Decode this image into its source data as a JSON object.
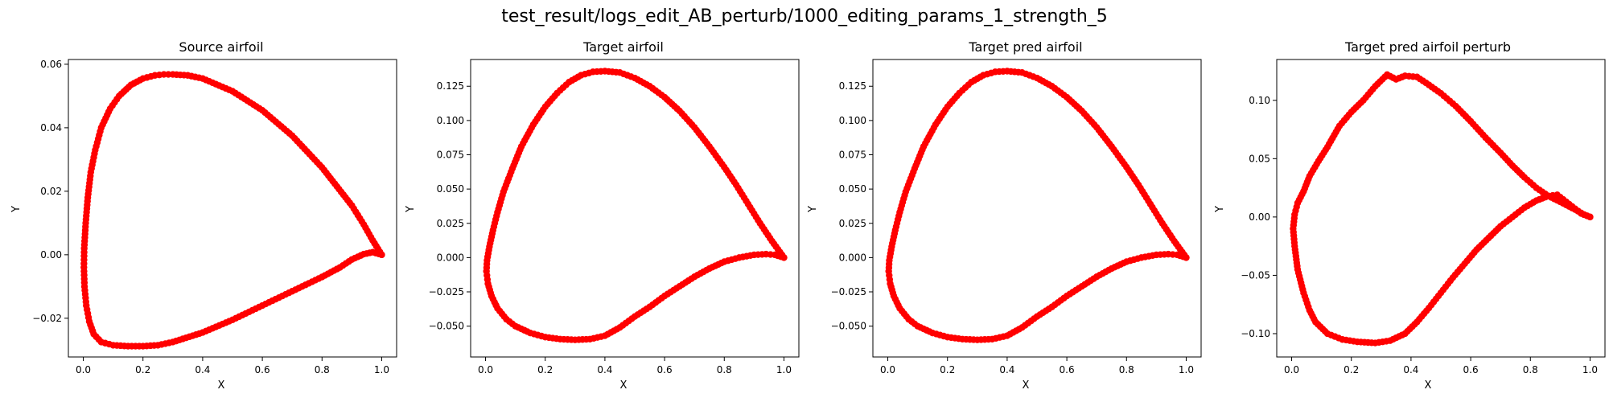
{
  "suptitle": "test_result/logs_edit_AB_perturb/1000_editing_params_1_strength_5",
  "chart_data": [
    {
      "type": "scatter",
      "title": "Source airfoil",
      "xlabel": "X",
      "ylabel": "Y",
      "xlim": [
        -0.05,
        1.05
      ],
      "ylim": [
        -0.0322,
        0.0615
      ],
      "xticks": [
        "0.0",
        "0.2",
        "0.4",
        "0.6",
        "0.8",
        "1.0"
      ],
      "xtick_values": [
        0,
        0.2,
        0.4,
        0.6,
        0.8,
        1.0
      ],
      "yticks": [
        "−0.02",
        "0.00",
        "0.02",
        "0.04",
        "0.06"
      ],
      "ytick_values": [
        -0.02,
        0,
        0.02,
        0.04,
        0.06
      ],
      "marker_color": "#ff0000",
      "upper": [
        [
          1.0,
          0.0
        ],
        [
          0.97,
          0.0045
        ],
        [
          0.94,
          0.0095
        ],
        [
          0.9,
          0.0155
        ],
        [
          0.85,
          0.0215
        ],
        [
          0.8,
          0.0275
        ],
        [
          0.75,
          0.0325
        ],
        [
          0.7,
          0.0375
        ],
        [
          0.6,
          0.0455
        ],
        [
          0.5,
          0.0515
        ],
        [
          0.4,
          0.0555
        ],
        [
          0.35,
          0.0565
        ],
        [
          0.3,
          0.0568
        ],
        [
          0.27,
          0.0568
        ],
        [
          0.24,
          0.0565
        ],
        [
          0.2,
          0.0555
        ],
        [
          0.16,
          0.0535
        ],
        [
          0.12,
          0.05
        ],
        [
          0.09,
          0.046
        ],
        [
          0.06,
          0.04
        ],
        [
          0.04,
          0.033
        ],
        [
          0.025,
          0.026
        ],
        [
          0.015,
          0.018
        ],
        [
          0.008,
          0.01
        ],
        [
          0.003,
          0.002
        ],
        [
          0.002,
          -0.004
        ],
        [
          0.004,
          -0.01
        ],
        [
          0.01,
          -0.016
        ],
        [
          0.02,
          -0.021
        ],
        [
          0.035,
          -0.025
        ],
        [
          0.06,
          -0.0275
        ],
        [
          0.1,
          -0.0285
        ],
        [
          0.15,
          -0.0288
        ],
        [
          0.2,
          -0.0288
        ],
        [
          0.25,
          -0.0285
        ],
        [
          0.3,
          -0.0275
        ],
        [
          0.4,
          -0.0245
        ],
        [
          0.5,
          -0.0205
        ],
        [
          0.6,
          -0.016
        ],
        [
          0.7,
          -0.0115
        ],
        [
          0.8,
          -0.007
        ],
        [
          0.86,
          -0.004
        ],
        [
          0.9,
          -0.0015
        ],
        [
          0.94,
          0.0002
        ],
        [
          0.97,
          0.0008
        ],
        [
          1.0,
          0.0
        ]
      ]
    },
    {
      "type": "scatter",
      "title": "Target airfoil",
      "xlabel": "X",
      "ylabel": "Y",
      "xlim": [
        -0.05,
        1.05
      ],
      "ylim": [
        -0.0725,
        0.1445
      ],
      "xticks": [
        "0.0",
        "0.2",
        "0.4",
        "0.6",
        "0.8",
        "1.0"
      ],
      "xtick_values": [
        0,
        0.2,
        0.4,
        0.6,
        0.8,
        1.0
      ],
      "yticks": [
        "−0.050",
        "−0.025",
        "0.000",
        "0.025",
        "0.050",
        "0.075",
        "0.100",
        "0.125"
      ],
      "ytick_values": [
        -0.05,
        -0.025,
        0,
        0.025,
        0.05,
        0.075,
        0.1,
        0.125
      ],
      "marker_color": "#ff0000",
      "upper": [
        [
          1.0,
          0.0
        ],
        [
          0.96,
          0.012
        ],
        [
          0.92,
          0.025
        ],
        [
          0.88,
          0.039
        ],
        [
          0.84,
          0.053
        ],
        [
          0.8,
          0.066
        ],
        [
          0.75,
          0.081
        ],
        [
          0.7,
          0.095
        ],
        [
          0.65,
          0.107
        ],
        [
          0.6,
          0.117
        ],
        [
          0.55,
          0.125
        ],
        [
          0.5,
          0.131
        ],
        [
          0.45,
          0.135
        ],
        [
          0.4,
          0.136
        ],
        [
          0.36,
          0.1355
        ],
        [
          0.32,
          0.133
        ],
        [
          0.28,
          0.128
        ],
        [
          0.24,
          0.12
        ],
        [
          0.2,
          0.11
        ],
        [
          0.16,
          0.097
        ],
        [
          0.12,
          0.081
        ],
        [
          0.09,
          0.065
        ],
        [
          0.06,
          0.048
        ],
        [
          0.04,
          0.033
        ],
        [
          0.025,
          0.02
        ],
        [
          0.013,
          0.008
        ],
        [
          0.005,
          -0.002
        ],
        [
          0.003,
          -0.01
        ],
        [
          0.008,
          -0.019
        ],
        [
          0.02,
          -0.028
        ],
        [
          0.04,
          -0.037
        ],
        [
          0.07,
          -0.045
        ],
        [
          0.1,
          -0.05
        ],
        [
          0.15,
          -0.055
        ],
        [
          0.2,
          -0.058
        ],
        [
          0.25,
          -0.0595
        ],
        [
          0.3,
          -0.06
        ],
        [
          0.35,
          -0.0595
        ],
        [
          0.4,
          -0.057
        ],
        [
          0.45,
          -0.051
        ],
        [
          0.5,
          -0.043
        ],
        [
          0.55,
          -0.036
        ],
        [
          0.6,
          -0.028
        ],
        [
          0.65,
          -0.021
        ],
        [
          0.7,
          -0.014
        ],
        [
          0.75,
          -0.008
        ],
        [
          0.8,
          -0.003
        ],
        [
          0.85,
          0.0
        ],
        [
          0.9,
          0.002
        ],
        [
          0.94,
          0.0025
        ],
        [
          0.97,
          0.002
        ],
        [
          1.0,
          0.0
        ]
      ]
    },
    {
      "type": "scatter",
      "title": "Target pred airfoil",
      "xlabel": "X",
      "ylabel": "Y",
      "xlim": [
        -0.05,
        1.05
      ],
      "ylim": [
        -0.0725,
        0.1445
      ],
      "xticks": [
        "0.0",
        "0.2",
        "0.4",
        "0.6",
        "0.8",
        "1.0"
      ],
      "xtick_values": [
        0,
        0.2,
        0.4,
        0.6,
        0.8,
        1.0
      ],
      "yticks": [
        "−0.050",
        "−0.025",
        "0.000",
        "0.025",
        "0.050",
        "0.075",
        "0.100",
        "0.125"
      ],
      "ytick_values": [
        -0.05,
        -0.025,
        0,
        0.025,
        0.05,
        0.075,
        0.1,
        0.125
      ],
      "marker_color": "#ff0000",
      "upper": [
        [
          1.0,
          0.0
        ],
        [
          0.96,
          0.012
        ],
        [
          0.92,
          0.025
        ],
        [
          0.88,
          0.039
        ],
        [
          0.84,
          0.053
        ],
        [
          0.8,
          0.066
        ],
        [
          0.75,
          0.081
        ],
        [
          0.7,
          0.095
        ],
        [
          0.65,
          0.107
        ],
        [
          0.6,
          0.117
        ],
        [
          0.55,
          0.125
        ],
        [
          0.5,
          0.131
        ],
        [
          0.45,
          0.135
        ],
        [
          0.4,
          0.136
        ],
        [
          0.36,
          0.1355
        ],
        [
          0.32,
          0.133
        ],
        [
          0.28,
          0.128
        ],
        [
          0.24,
          0.12
        ],
        [
          0.2,
          0.11
        ],
        [
          0.16,
          0.097
        ],
        [
          0.12,
          0.081
        ],
        [
          0.09,
          0.065
        ],
        [
          0.06,
          0.048
        ],
        [
          0.04,
          0.033
        ],
        [
          0.025,
          0.02
        ],
        [
          0.013,
          0.008
        ],
        [
          0.005,
          -0.002
        ],
        [
          0.003,
          -0.01
        ],
        [
          0.008,
          -0.019
        ],
        [
          0.02,
          -0.028
        ],
        [
          0.04,
          -0.037
        ],
        [
          0.07,
          -0.045
        ],
        [
          0.1,
          -0.05
        ],
        [
          0.15,
          -0.055
        ],
        [
          0.2,
          -0.058
        ],
        [
          0.25,
          -0.0595
        ],
        [
          0.3,
          -0.06
        ],
        [
          0.35,
          -0.0595
        ],
        [
          0.4,
          -0.057
        ],
        [
          0.45,
          -0.051
        ],
        [
          0.5,
          -0.043
        ],
        [
          0.55,
          -0.036
        ],
        [
          0.6,
          -0.028
        ],
        [
          0.65,
          -0.021
        ],
        [
          0.7,
          -0.014
        ],
        [
          0.75,
          -0.008
        ],
        [
          0.8,
          -0.003
        ],
        [
          0.85,
          0.0
        ],
        [
          0.9,
          0.002
        ],
        [
          0.94,
          0.0025
        ],
        [
          0.97,
          0.002
        ],
        [
          1.0,
          0.0
        ]
      ]
    },
    {
      "type": "scatter",
      "title": "Target pred airfoil perturb",
      "xlabel": "X",
      "ylabel": "Y",
      "xlim": [
        -0.05,
        1.05
      ],
      "ylim": [
        -0.12,
        0.135
      ],
      "xticks": [
        "0.0",
        "0.2",
        "0.4",
        "0.6",
        "0.8",
        "1.0"
      ],
      "xtick_values": [
        0,
        0.2,
        0.4,
        0.6,
        0.8,
        1.0
      ],
      "yticks": [
        "−0.10",
        "−0.05",
        "0.00",
        "0.05",
        "0.10"
      ],
      "ytick_values": [
        -0.1,
        -0.05,
        0,
        0.05,
        0.1
      ],
      "marker_color": "#ff0000",
      "upper": [
        [
          1.0,
          0.0
        ],
        [
          0.98,
          0.002
        ],
        [
          0.96,
          0.005
        ],
        [
          0.93,
          0.009
        ],
        [
          0.9,
          0.013
        ],
        [
          0.86,
          0.018
        ],
        [
          0.82,
          0.025
        ],
        [
          0.78,
          0.034
        ],
        [
          0.74,
          0.044
        ],
        [
          0.7,
          0.055
        ],
        [
          0.65,
          0.068
        ],
        [
          0.6,
          0.082
        ],
        [
          0.55,
          0.095
        ],
        [
          0.5,
          0.106
        ],
        [
          0.45,
          0.115
        ],
        [
          0.42,
          0.12
        ],
        [
          0.38,
          0.121
        ],
        [
          0.35,
          0.118
        ],
        [
          0.32,
          0.122
        ],
        [
          0.28,
          0.112
        ],
        [
          0.24,
          0.1
        ],
        [
          0.2,
          0.09
        ],
        [
          0.16,
          0.078
        ],
        [
          0.12,
          0.06
        ],
        [
          0.09,
          0.048
        ],
        [
          0.06,
          0.035
        ],
        [
          0.04,
          0.022
        ],
        [
          0.02,
          0.012
        ],
        [
          0.01,
          0.002
        ],
        [
          0.005,
          -0.01
        ],
        [
          0.01,
          -0.025
        ],
        [
          0.02,
          -0.045
        ],
        [
          0.04,
          -0.065
        ],
        [
          0.06,
          -0.08
        ],
        [
          0.08,
          -0.09
        ],
        [
          0.12,
          -0.1
        ],
        [
          0.17,
          -0.105
        ],
        [
          0.22,
          -0.107
        ],
        [
          0.28,
          -0.108
        ],
        [
          0.33,
          -0.106
        ],
        [
          0.38,
          -0.1
        ],
        [
          0.42,
          -0.09
        ],
        [
          0.46,
          -0.078
        ],
        [
          0.5,
          -0.065
        ],
        [
          0.54,
          -0.052
        ],
        [
          0.58,
          -0.04
        ],
        [
          0.62,
          -0.028
        ],
        [
          0.66,
          -0.018
        ],
        [
          0.7,
          -0.008
        ],
        [
          0.74,
          0.0
        ],
        [
          0.78,
          0.008
        ],
        [
          0.82,
          0.014
        ],
        [
          0.86,
          0.018
        ],
        [
          0.89,
          0.019
        ],
        [
          0.92,
          0.013
        ],
        [
          0.95,
          0.007
        ],
        [
          0.97,
          0.003
        ],
        [
          1.0,
          0.0
        ]
      ]
    }
  ]
}
